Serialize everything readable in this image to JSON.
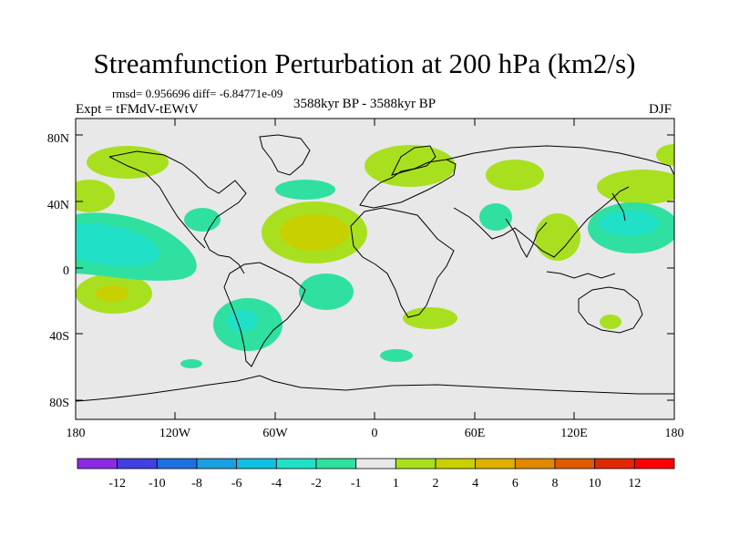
{
  "title": "Streamfunction Perturbation at 200 hPa (km2/s)",
  "stats": "rmsd= 0.956696 diff= -6.84771e-09",
  "experiment": "Expt = tFMdV-tEWtV",
  "period": "3588kyr BP - 3588kyr BP",
  "season": "DJF",
  "lat_ticks": [
    "80N",
    "40N",
    "0",
    "40S",
    "80S"
  ],
  "lon_ticks": [
    "180",
    "120W",
    "60W",
    "0",
    "60E",
    "120E",
    "180"
  ],
  "colorbar": {
    "labels": [
      "-12",
      "-10",
      "-8",
      "-6",
      "-4",
      "-2",
      "-1",
      "1",
      "2",
      "4",
      "6",
      "8",
      "10",
      "12"
    ],
    "colors": [
      "#8a2be2",
      "#4040e0",
      "#1e6fe0",
      "#1aa0e0",
      "#10c0e0",
      "#20e0c8",
      "#30e0a0",
      "#e8e8e8",
      "#a8e020",
      "#c8d000",
      "#e0b000",
      "#e08800",
      "#e05a00",
      "#e02800",
      "#ff0000"
    ]
  },
  "colors": {
    "ocean_background": "#e8e8e8",
    "coastline": "#000000"
  }
}
